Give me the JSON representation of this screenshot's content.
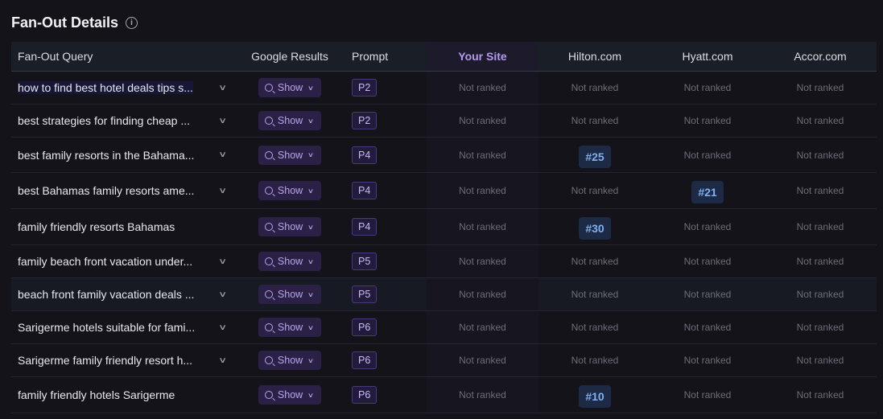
{
  "title": "Fan-Out Details",
  "info_icon": "info-circle-icon",
  "columns": {
    "query": "Fan-Out Query",
    "google": "Google Results",
    "prompt": "Prompt",
    "your_site": "Your Site",
    "hilton": "Hilton.com",
    "hyatt": "Hyatt.com",
    "accor": "Accor.com"
  },
  "colors": {
    "accent": "#b39af0",
    "rank_badge": "#7fb0f2"
  },
  "show_label": "Show",
  "rows": [
    {
      "query": "how to find best hotel deals tips s...",
      "expandable": true,
      "prompt": "P2",
      "your_site": "Not ranked",
      "hilton": "Not ranked",
      "hyatt": "Not ranked",
      "accor": "Not ranked"
    },
    {
      "query": "best strategies for finding cheap ...",
      "expandable": true,
      "prompt": "P2",
      "your_site": "Not ranked",
      "hilton": "Not ranked",
      "hyatt": "Not ranked",
      "accor": "Not ranked"
    },
    {
      "query": "best family resorts in the Bahama...",
      "expandable": true,
      "prompt": "P4",
      "your_site": "Not ranked",
      "hilton": "#25",
      "hyatt": "Not ranked",
      "accor": "Not ranked"
    },
    {
      "query": "best Bahamas family resorts ame...",
      "expandable": true,
      "prompt": "P4",
      "your_site": "Not ranked",
      "hilton": "Not ranked",
      "hyatt": "#21",
      "accor": "Not ranked"
    },
    {
      "query": "family friendly resorts Bahamas",
      "expandable": false,
      "prompt": "P4",
      "your_site": "Not ranked",
      "hilton": "#30",
      "hyatt": "Not ranked",
      "accor": "Not ranked"
    },
    {
      "query": "family beach front vacation under...",
      "expandable": true,
      "prompt": "P5",
      "your_site": "Not ranked",
      "hilton": "Not ranked",
      "hyatt": "Not ranked",
      "accor": "Not ranked"
    },
    {
      "query": "beach front family vacation deals ...",
      "expandable": true,
      "prompt": "P5",
      "your_site": "Not ranked",
      "hilton": "Not ranked",
      "hyatt": "Not ranked",
      "accor": "Not ranked"
    },
    {
      "query": "Sarigerme hotels suitable for fami...",
      "expandable": true,
      "prompt": "P6",
      "your_site": "Not ranked",
      "hilton": "Not ranked",
      "hyatt": "Not ranked",
      "accor": "Not ranked"
    },
    {
      "query": "Sarigerme family friendly resort h...",
      "expandable": true,
      "prompt": "P6",
      "your_site": "Not ranked",
      "hilton": "Not ranked",
      "hyatt": "Not ranked",
      "accor": "Not ranked"
    },
    {
      "query": "family friendly hotels Sarigerme",
      "expandable": false,
      "prompt": "P6",
      "your_site": "Not ranked",
      "hilton": "#10",
      "hyatt": "Not ranked",
      "accor": "Not ranked"
    }
  ]
}
